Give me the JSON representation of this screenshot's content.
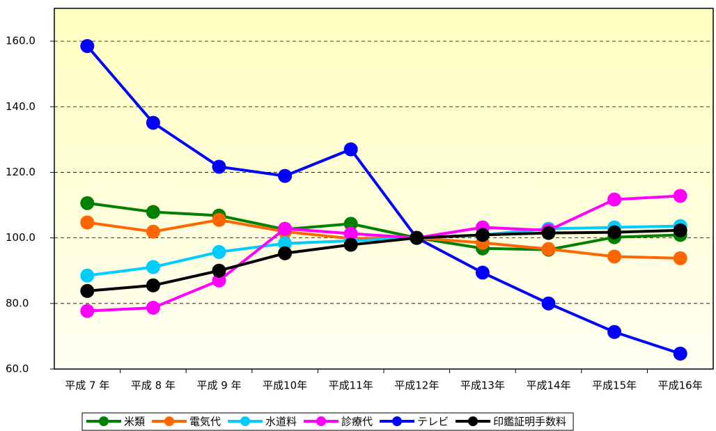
{
  "chart_data": {
    "type": "line",
    "categories": [
      "平成 7 年",
      "平成 8 年",
      "平成 9 年",
      "平成10年",
      "平成11年",
      "平成12年",
      "平成13年",
      "平成14年",
      "平成15年",
      "平成16年"
    ],
    "series": [
      {
        "name": "米類",
        "color": "#008000",
        "values": [
          110.6,
          107.9,
          106.8,
          102.6,
          104.3,
          100.0,
          96.8,
          96.4,
          100.2,
          100.9
        ]
      },
      {
        "name": "電気代",
        "color": "#ff6600",
        "values": [
          104.7,
          101.9,
          105.5,
          101.9,
          99.8,
          100.0,
          98.5,
          96.6,
          94.3,
          93.8
        ]
      },
      {
        "name": "水道料",
        "color": "#00ccff",
        "values": [
          88.5,
          91.1,
          95.7,
          98.3,
          99.1,
          100.0,
          100.9,
          102.8,
          103.2,
          103.6
        ]
      },
      {
        "name": "診療代",
        "color": "#ff00ff",
        "values": [
          77.7,
          78.7,
          87.0,
          102.8,
          101.3,
          100.0,
          103.2,
          102.3,
          111.7,
          112.8
        ]
      },
      {
        "name": "テレビ",
        "color": "#0000ff",
        "values": [
          158.5,
          135.1,
          121.7,
          118.9,
          127.0,
          100.0,
          89.4,
          80.0,
          71.3,
          64.7
        ]
      },
      {
        "name": "印鑑証明手数料",
        "color": "#000000",
        "values": [
          83.8,
          85.5,
          90.0,
          95.3,
          97.9,
          100.0,
          100.9,
          101.5,
          101.7,
          102.3
        ]
      }
    ],
    "ylim": [
      60,
      170
    ],
    "yticks": [
      {
        "value": 60,
        "label": "60.0"
      },
      {
        "value": 80,
        "label": "80.0"
      },
      {
        "value": 100,
        "label": "100.0"
      },
      {
        "value": 120,
        "label": "120.0"
      },
      {
        "value": 140,
        "label": "140.0"
      },
      {
        "value": 160,
        "label": "160.0"
      }
    ],
    "grid": true,
    "legend": "bottom"
  }
}
